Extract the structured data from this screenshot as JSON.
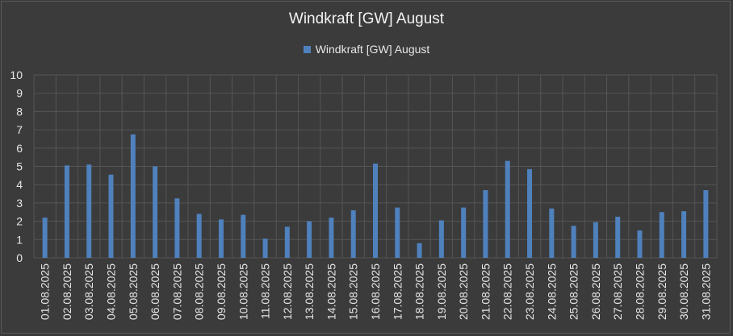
{
  "chart_data": {
    "type": "bar",
    "title": "Windkraft [GW] August",
    "xlabel": "",
    "ylabel": "",
    "ylim": [
      0,
      10
    ],
    "yticks": [
      0,
      1,
      2,
      3,
      4,
      5,
      6,
      7,
      8,
      9,
      10
    ],
    "grid": true,
    "legend_position": "top-center",
    "bar_color": "#4f81bd",
    "categories": [
      "01.08.2025",
      "02.08.2025",
      "03.08.2025",
      "04.08.2025",
      "05.08.2025",
      "06.08.2025",
      "07.08.2025",
      "08.08.2025",
      "09.08.2025",
      "10.08.2025",
      "11.08.2025",
      "12.08.2025",
      "13.08.2025",
      "14.08.2025",
      "15.08.2025",
      "16.08.2025",
      "17.08.2025",
      "18.08.2025",
      "19.08.2025",
      "20.08.2025",
      "21.08.2025",
      "22.08.2025",
      "23.08.2025",
      "24.08.2025",
      "25.08.2025",
      "26.08.2025",
      "27.08.2025",
      "28.08.2025",
      "29.08.2025",
      "30.08.2025",
      "31.08.2025"
    ],
    "series": [
      {
        "name": "Windkraft [GW] August",
        "values": [
          2.2,
          5.05,
          5.1,
          4.55,
          6.75,
          5.0,
          3.25,
          2.4,
          2.1,
          2.35,
          1.05,
          1.7,
          2.0,
          2.2,
          2.6,
          5.15,
          2.75,
          0.8,
          2.05,
          2.75,
          3.7,
          5.3,
          4.85,
          2.7,
          1.75,
          1.95,
          2.25,
          1.5,
          2.5,
          2.55,
          3.7
        ]
      }
    ]
  }
}
